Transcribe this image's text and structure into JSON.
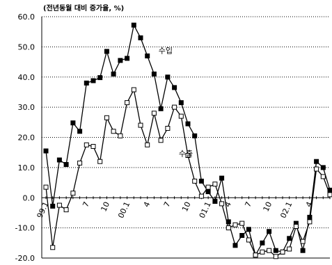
{
  "chart_data": {
    "type": "line",
    "unit_label": "(전년동월 대비 증가율, %)",
    "ylim": [
      -20,
      60
    ],
    "y_ticks": [
      "60.0",
      "50.0",
      "40.0",
      "30.0",
      "20.0",
      "10.0",
      "0.0",
      "-10.0",
      "-20.0"
    ],
    "x_tick_labels": [
      {
        "label": "99.1",
        "index": 0
      },
      {
        "label": "7",
        "index": 6
      },
      {
        "label": "10",
        "index": 9
      },
      {
        "label": "00.1",
        "index": 12
      },
      {
        "label": "4",
        "index": 15
      },
      {
        "label": "7",
        "index": 18
      },
      {
        "label": "10",
        "index": 21
      },
      {
        "label": "01.1",
        "index": 24
      },
      {
        "label": "4",
        "index": 27
      },
      {
        "label": "7",
        "index": 30
      },
      {
        "label": "10",
        "index": 33
      },
      {
        "label": "02.1",
        "index": 36
      },
      {
        "label": "4",
        "index": 39
      }
    ],
    "series": [
      {
        "name": "수입",
        "marker": "filled-square",
        "values": [
          15.5,
          -2.8,
          12.5,
          11.0,
          24.8,
          22.0,
          38.0,
          38.8,
          39.8,
          48.5,
          41.0,
          45.5,
          46.2,
          57.2,
          53.0,
          47.0,
          41.0,
          29.5,
          40.0,
          36.5,
          31.5,
          24.5,
          20.5,
          5.5,
          2.0,
          -1.2,
          6.5,
          -8.0,
          -15.8,
          -12.5,
          -10.5,
          -19.0,
          -15.0,
          -11.2,
          -17.5,
          -18.0,
          -13.5,
          -8.5,
          -17.5,
          -6.5,
          12.0,
          10.0,
          2.5
        ]
      },
      {
        "name": "수출",
        "marker": "hollow-square",
        "values": [
          3.5,
          -16.5,
          -2.5,
          -4.0,
          1.5,
          11.5,
          17.5,
          17.0,
          12.0,
          26.5,
          22.0,
          20.5,
          31.5,
          35.8,
          24.0,
          17.5,
          28.0,
          19.0,
          23.0,
          30.0,
          27.0,
          14.0,
          5.5,
          0.5,
          3.5,
          4.5,
          -2.0,
          -10.0,
          -9.0,
          -8.5,
          -14.0,
          -19.0,
          -18.0,
          -17.5,
          -19.5,
          -18.0,
          -17.0,
          -9.5,
          -14.5,
          -8.0,
          9.5,
          7.0,
          1.0
        ]
      }
    ],
    "series_label_positions": [
      {
        "name": "수입",
        "index": 15
      },
      {
        "name": "수출",
        "index": 18
      }
    ]
  }
}
